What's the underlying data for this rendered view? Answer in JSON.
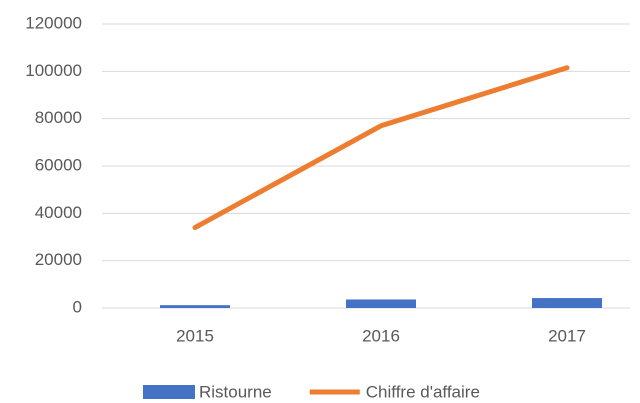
{
  "chart_data": {
    "type": "bar",
    "categories": [
      "2015",
      "2016",
      "2017"
    ],
    "series": [
      {
        "name": "Ristourne",
        "type": "bar",
        "color": "#4472c4",
        "values": [
          1200,
          3600,
          4200
        ]
      },
      {
        "name": "Chiffre d'affaire",
        "type": "line",
        "color": "#ed7d31",
        "values": [
          34000,
          77000,
          101500
        ]
      }
    ],
    "ylim": [
      0,
      120000
    ],
    "yticks": [
      0,
      20000,
      40000,
      60000,
      80000,
      100000,
      120000
    ],
    "grid": true,
    "legend": "bottom"
  }
}
